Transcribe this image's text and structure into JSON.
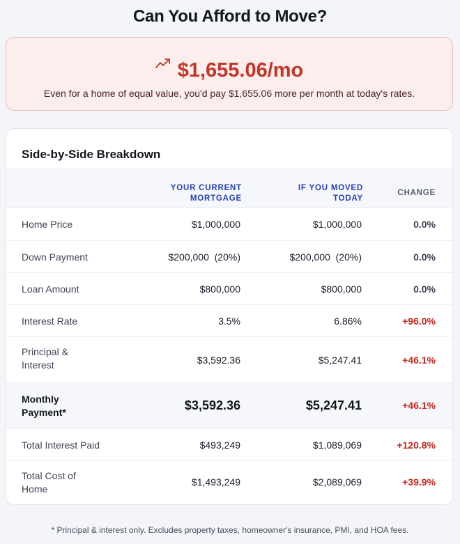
{
  "title": "Can You Afford to Move?",
  "alert": {
    "amount": "$1,655.06/mo",
    "message": "Even for a home of equal value, you'd pay $1,655.06 more per month at today's rates."
  },
  "breakdown": {
    "title": "Side-by-Side Breakdown",
    "headers": {
      "current": "YOUR CURRENT MORTGAGE",
      "moved": "IF YOU MOVED TODAY",
      "change": "CHANGE"
    },
    "rows": [
      {
        "label": "Home Price",
        "current": "$1,000,000",
        "moved": "$1,000,000",
        "change": "0.0%"
      },
      {
        "label": "Down Payment",
        "current": "$200,000  (20%)",
        "moved": "$200,000  (20%)",
        "change": "0.0%"
      },
      {
        "label": "Loan Amount",
        "current": "$800,000",
        "moved": "$800,000",
        "change": "0.0%"
      },
      {
        "label": "Interest Rate",
        "current": "3.5%",
        "moved": "6.86%",
        "change": "+96.0%"
      },
      {
        "label": "Principal & Interest",
        "current": "$3,592.36",
        "moved": "$5,247.41",
        "change": "+46.1%"
      },
      {
        "label": "Monthly Payment*",
        "current": "$3,592.36",
        "moved": "$5,247.41",
        "change": "+46.1%"
      },
      {
        "label": "Total Interest Paid",
        "current": "$493,249",
        "moved": "$1,089,069",
        "change": "+120.8%"
      },
      {
        "label": "Total Cost of Home",
        "current": "$1,493,249",
        "moved": "$2,089,069",
        "change": "+39.9%"
      }
    ]
  },
  "footnote": "* Principal & interest only. Excludes property taxes, homeowner's insurance, PMI, and HOA fees.",
  "colors": {
    "accent_red": "#c43528",
    "accent_blue": "#2540b6"
  }
}
